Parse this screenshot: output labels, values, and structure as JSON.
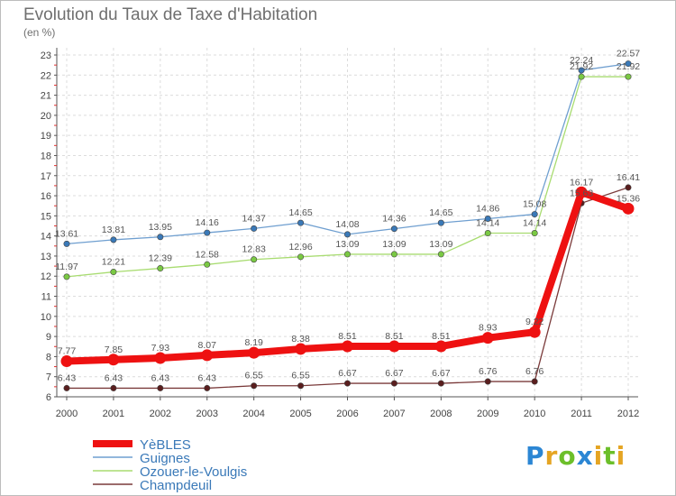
{
  "chart_data": {
    "type": "line",
    "title": "Evolution du Taux de Taxe d'Habitation",
    "ylabel": "(en %)",
    "categories": [
      "2000",
      "2001",
      "2002",
      "2003",
      "2004",
      "2005",
      "2006",
      "2007",
      "2008",
      "2009",
      "2010",
      "2011",
      "2012"
    ],
    "ylim": [
      6,
      23
    ],
    "yticks": [
      "6",
      "7",
      "8",
      "9",
      "10",
      "11",
      "12",
      "13",
      "14",
      "15",
      "16",
      "17",
      "18",
      "19",
      "20",
      "21",
      "22",
      "23"
    ],
    "grid": true,
    "legend_position": "bottom-left",
    "series": [
      {
        "name": "Guignes",
        "color": "#6f9fd0",
        "marker": "#3a79b8",
        "labels": [
          "13.61",
          "13.81",
          "13.95",
          "14.16",
          "14.37",
          "14.65",
          "14.08",
          "14.36",
          "14.65",
          "14.86",
          "15.08",
          "22.24",
          "22.57"
        ],
        "values": [
          13.61,
          13.81,
          13.95,
          14.16,
          14.37,
          14.65,
          14.08,
          14.36,
          14.65,
          14.86,
          15.08,
          22.24,
          22.57
        ]
      },
      {
        "name": "Ozouer-le-Voulgis",
        "color": "#a8dc70",
        "marker": "#7ac943",
        "labels": [
          "11.97",
          "12.21",
          "12.39",
          "12.58",
          "12.83",
          "12.96",
          "13.09",
          "13.09",
          "13.09",
          "14.14",
          "14.14",
          "21.92",
          "21.92"
        ],
        "values": [
          11.97,
          12.21,
          12.39,
          12.58,
          12.83,
          12.96,
          13.09,
          13.09,
          13.09,
          14.14,
          14.14,
          21.92,
          21.92
        ]
      },
      {
        "name": "Champdeuil",
        "color": "#7a3a3a",
        "marker": "#5a1e1e",
        "labels": [
          "6.43",
          "6.43",
          "6.43",
          "6.43",
          "6.55",
          "6.55",
          "6.67",
          "6.67",
          "6.67",
          "6.76",
          "6.76",
          "15.63",
          "16.41"
        ],
        "values": [
          6.43,
          6.43,
          6.43,
          6.43,
          6.55,
          6.55,
          6.67,
          6.67,
          6.67,
          6.76,
          6.76,
          15.63,
          16.41
        ]
      },
      {
        "name": "YèBLES",
        "color": "#ee1111",
        "marker": "#ee1111",
        "labels": [
          "7.77",
          "7.85",
          "7.93",
          "8.07",
          "8.19",
          "8.38",
          "8.51",
          "8.51",
          "8.51",
          "8.93",
          "9.22",
          "16.17",
          "15.36"
        ],
        "values": [
          7.77,
          7.85,
          7.93,
          8.07,
          8.19,
          8.38,
          8.51,
          8.51,
          8.51,
          8.93,
          9.22,
          16.17,
          15.36
        ]
      }
    ],
    "legend": [
      "YèBLES",
      "Guignes",
      "Ozouer-le-Voulgis",
      "Champdeuil"
    ]
  },
  "logo": {
    "letters": [
      "P",
      "r",
      "o",
      "x",
      "i",
      "t",
      "i"
    ],
    "colors": [
      "#2b86d4",
      "#e5a523",
      "#6cbf2a",
      "#2b86d4",
      "#e5a523",
      "#6cbf2a",
      "#e5a523"
    ]
  }
}
